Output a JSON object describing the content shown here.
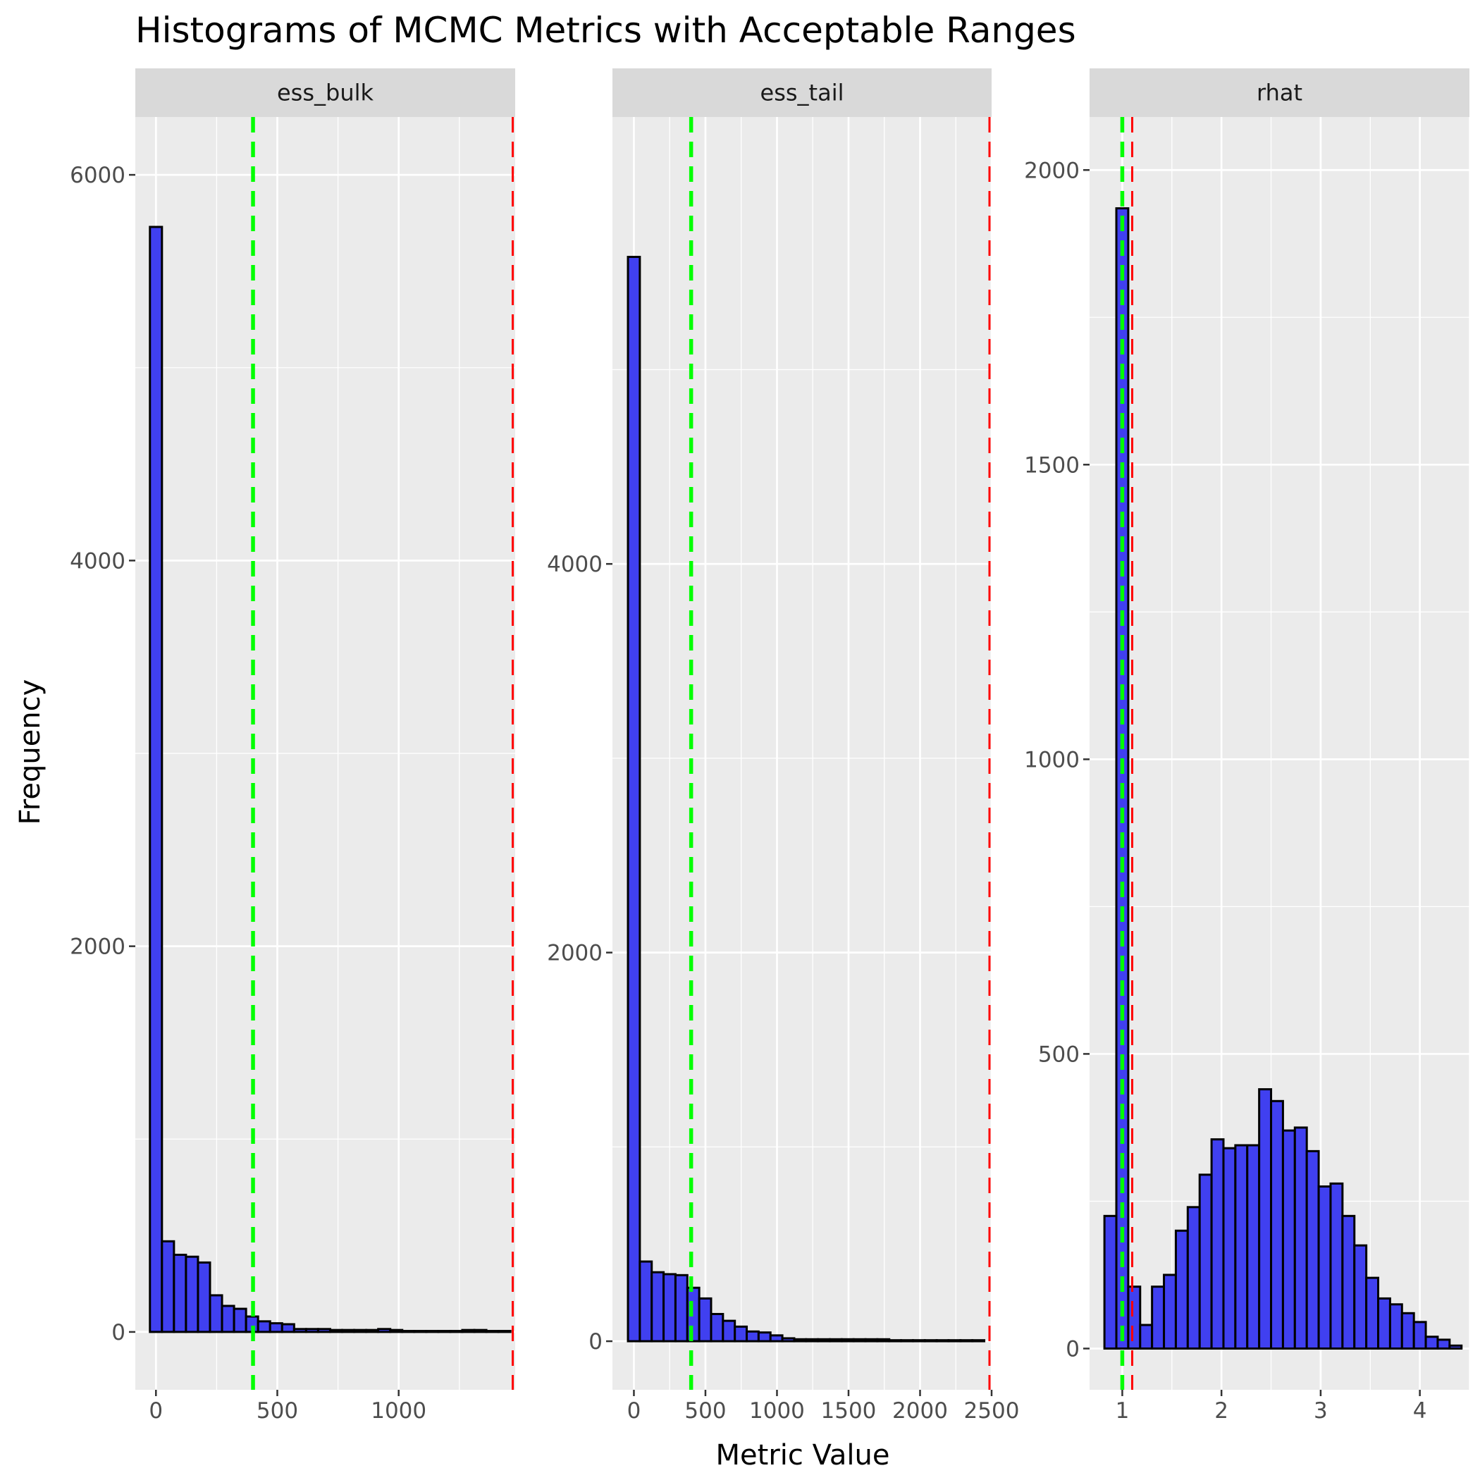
{
  "chart_data": {
    "type": "bar",
    "title": "Histograms of MCMC Metrics with Acceptable Ranges",
    "xlabel": "Metric Value",
    "ylabel": "Frequency",
    "grid": true,
    "colors": {
      "bar_fill": "#4040f0",
      "bar_stroke": "#000000",
      "panel_bg": "#ebebeb",
      "strip_bg": "#d9d9d9",
      "grid": "#ffffff",
      "green_line": "#00ff00",
      "red_line": "#ff0000"
    },
    "panels": [
      {
        "name": "ess_bulk",
        "xlim": [
          -85,
          1480
        ],
        "ylim": [
          -300,
          6300
        ],
        "xticks": [
          0,
          500,
          1000
        ],
        "xtick_labels": [
          "0",
          "500",
          "1000"
        ],
        "yticks": [
          0,
          2000,
          4000,
          6000
        ],
        "ytick_labels": [
          "0",
          "2000",
          "4000",
          "6000"
        ],
        "bin_width": 49.5,
        "bin_start": -24.75,
        "counts": [
          5730,
          470,
          400,
          390,
          360,
          190,
          135,
          120,
          80,
          55,
          45,
          40,
          15,
          15,
          15,
          10,
          10,
          10,
          10,
          15,
          10,
          5,
          5,
          5,
          5,
          5,
          10,
          10,
          5,
          5
        ],
        "green_line": 400,
        "red_line": 1470
      },
      {
        "name": "ess_tail",
        "xlim": [
          -150,
          2500
        ],
        "ylim": [
          -250,
          6300
        ],
        "xticks": [
          0,
          500,
          1000,
          1500,
          2000,
          2500
        ],
        "xtick_labels": [
          "0",
          "500",
          "1000",
          "1500",
          "2000",
          "2500"
        ],
        "yticks": [
          0,
          2000,
          4000
        ],
        "ytick_labels": [
          "0",
          "2000",
          "4000"
        ],
        "bin_width": 83,
        "bin_start": -41.5,
        "counts": [
          5580,
          410,
          355,
          345,
          340,
          275,
          220,
          140,
          105,
          75,
          50,
          45,
          30,
          15,
          10,
          10,
          10,
          10,
          10,
          10,
          10,
          10,
          5,
          5,
          5,
          5,
          5,
          5,
          5,
          5
        ],
        "green_line": 400,
        "red_line": 2500
      },
      {
        "name": "rhat",
        "xlim": [
          0.67,
          4.5
        ],
        "ylim": [
          -70,
          2090
        ],
        "xticks": [
          1,
          2,
          3,
          4
        ],
        "xtick_labels": [
          "1",
          "2",
          "3",
          "4"
        ],
        "yticks": [
          0,
          500,
          1000,
          1500,
          2000
        ],
        "ytick_labels": [
          "0",
          "500",
          "1000",
          "1500",
          "2000"
        ],
        "bin_width": 0.12,
        "bin_start": 0.82,
        "counts": [
          225,
          1935,
          105,
          40,
          105,
          125,
          200,
          240,
          295,
          355,
          340,
          345,
          345,
          440,
          420,
          370,
          375,
          335,
          275,
          280,
          225,
          175,
          120,
          85,
          75,
          60,
          45,
          20,
          15,
          5
        ],
        "green_line": 1.0,
        "red_line": 1.1
      }
    ]
  }
}
